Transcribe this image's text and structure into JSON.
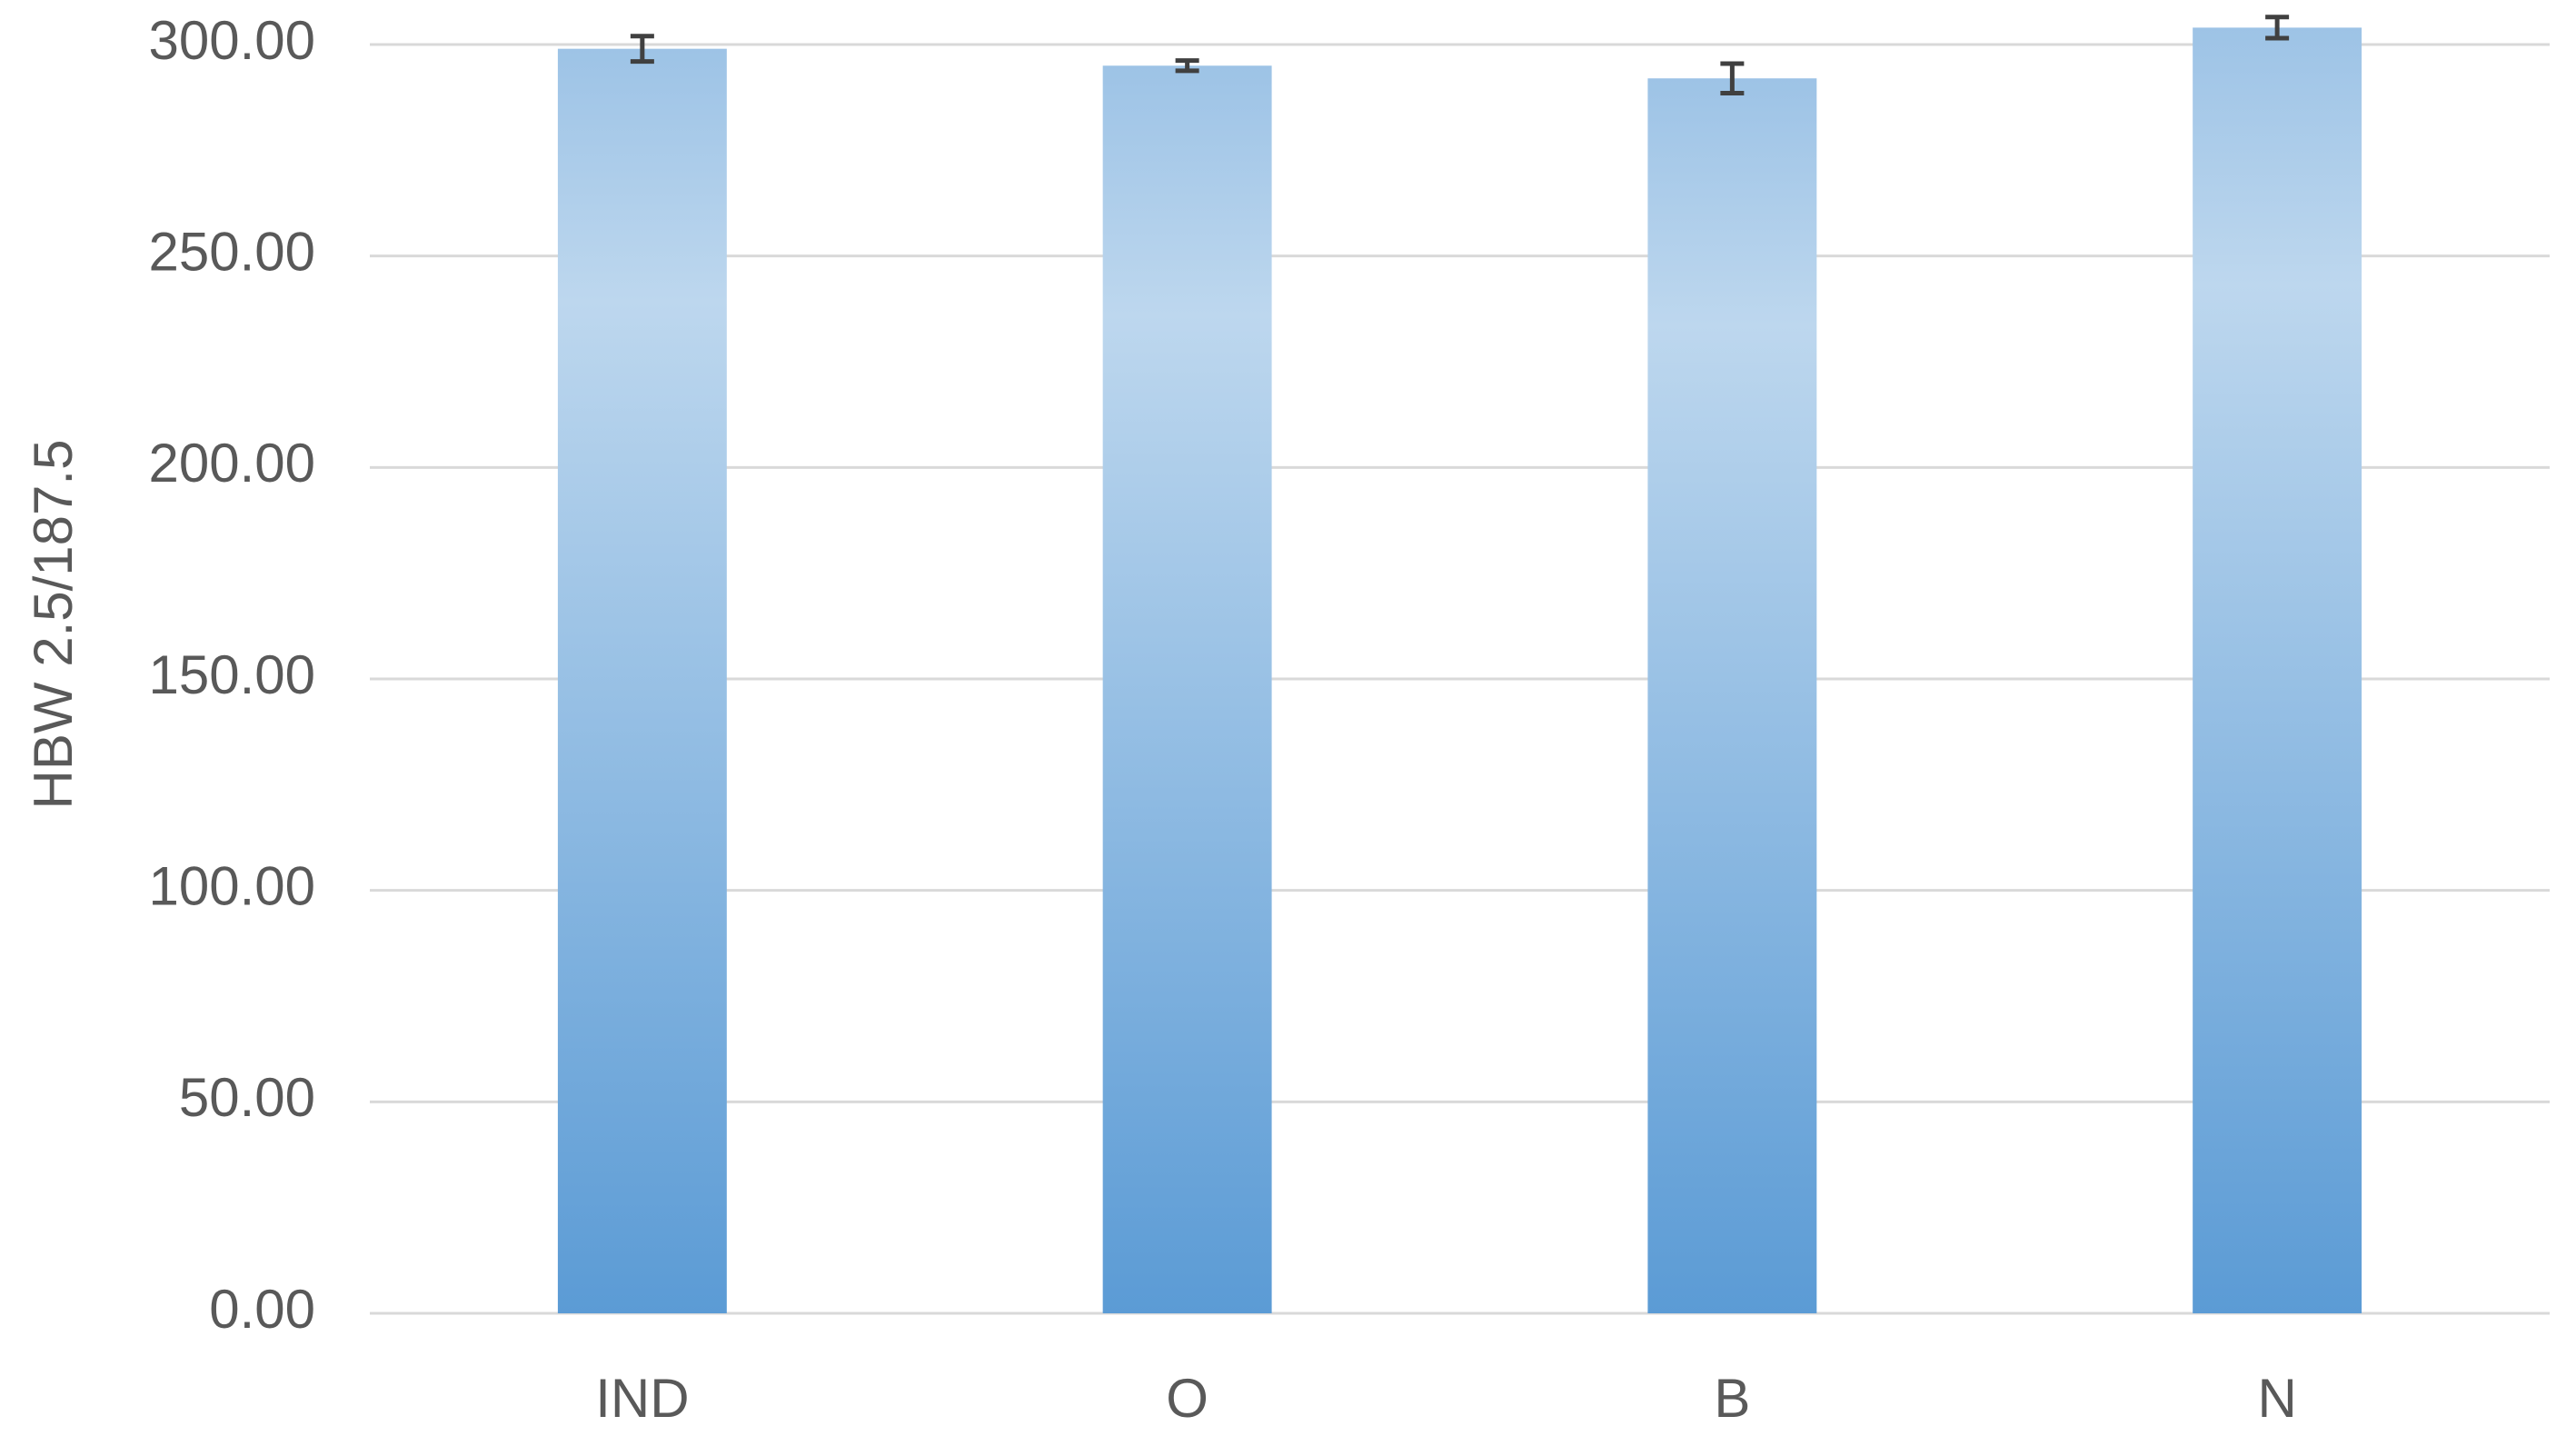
{
  "chart_data": {
    "type": "bar",
    "y_label": "HBW 2.5/187.5",
    "categories": [
      "IND",
      "O",
      "B",
      "N"
    ],
    "values": [
      299,
      295,
      292,
      304
    ],
    "errors": [
      3,
      1.2,
      3.5,
      2.5
    ],
    "color": "#5b9bd5",
    "ylim": [
      0,
      300
    ],
    "yticks": [
      {
        "value": 0,
        "label": "0.00"
      },
      {
        "value": 50,
        "label": "50.00"
      },
      {
        "value": 100,
        "label": "100.00"
      },
      {
        "value": 150,
        "label": "150.00"
      },
      {
        "value": 200,
        "label": "200.00"
      },
      {
        "value": 250,
        "label": "250.00"
      },
      {
        "value": 300,
        "label": "300.00"
      }
    ],
    "grid": true
  }
}
